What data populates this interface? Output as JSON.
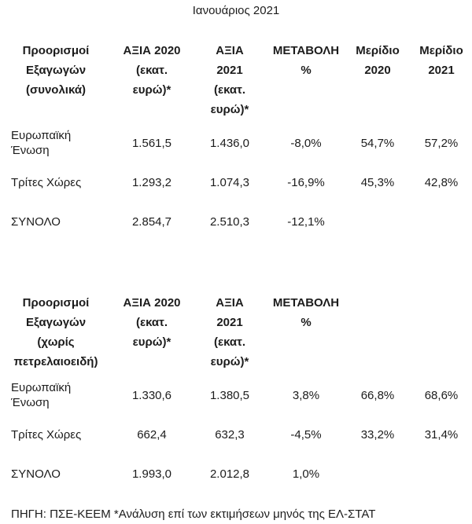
{
  "title": "Ιανουάριος 2021",
  "source_note": "ΠΗΓΗ: ΠΣΕ-ΚΕΕΜ *Ανάλυση επί των εκτιμήσεων μηνός της ΕΛ-ΣΤΑΤ",
  "tables": [
    {
      "headers": [
        "Προορισμοί\nΕξαγωγών\n(συνολικά)",
        "ΑΞΙΑ 2020\n(εκατ.\nευρώ)*",
        "ΑΞΙΑ\n2021\n(εκατ.\nευρώ)*",
        "ΜΕΤΑΒΟΛΗ\n%",
        "Μερίδιο\n2020",
        "Μερίδιο\n2021"
      ],
      "rows": [
        [
          "Ευρωπαϊκή Ένωση",
          "1.561,5",
          "1.436,0",
          "-8,0%",
          "54,7%",
          "57,2%"
        ],
        [
          "Τρίτες Χώρες",
          "1.293,2",
          "1.074,3",
          "-16,9%",
          "45,3%",
          "42,8%"
        ],
        [
          "ΣΥΝΟΛΟ",
          "2.854,7",
          "2.510,3",
          "-12,1%",
          "",
          ""
        ]
      ]
    },
    {
      "headers": [
        "Προορισμοί\nΕξαγωγών\n(χωρίς\nπετρελαιοειδή)",
        "ΑΞΙΑ 2020\n(εκατ.\nευρώ)*",
        "ΑΞΙΑ\n2021\n(εκατ.\nευρώ)*",
        "ΜΕΤΑΒΟΛΗ\n%",
        "",
        ""
      ],
      "rows": [
        [
          "Ευρωπαϊκή Ένωση",
          "1.330,6",
          "1.380,5",
          "3,8%",
          "66,8%",
          "68,6%"
        ],
        [
          "Τρίτες Χώρες",
          "662,4",
          "632,3",
          "-4,5%",
          "33,2%",
          "31,4%"
        ],
        [
          "ΣΥΝΟΛΟ",
          "1.993,0",
          "2.012,8",
          "1,0%",
          "",
          ""
        ]
      ]
    }
  ],
  "chart_data": [
    {
      "type": "table",
      "title": "Προορισμοί Εξαγωγών (συνολικά) — Ιανουάριος 2021",
      "columns": [
        "Προορισμοί Εξαγωγών (συνολικά)",
        "ΑΞΙΑ 2020 (εκατ. ευρώ)*",
        "ΑΞΙΑ 2021 (εκατ. ευρώ)*",
        "ΜΕΤΑΒΟΛΗ %",
        "Μερίδιο 2020",
        "Μερίδιο 2021"
      ],
      "rows": [
        [
          "Ευρωπαϊκή Ένωση",
          1561.5,
          1436.0,
          -8.0,
          54.7,
          57.2
        ],
        [
          "Τρίτες Χώρες",
          1293.2,
          1074.3,
          -16.9,
          45.3,
          42.8
        ],
        [
          "ΣΥΝΟΛΟ",
          2854.7,
          2510.3,
          -12.1,
          null,
          null
        ]
      ]
    },
    {
      "type": "table",
      "title": "Προορισμοί Εξαγωγών (χωρίς πετρελαιοειδή) — Ιανουάριος 2021",
      "columns": [
        "Προορισμοί Εξαγωγών (χωρίς πετρελαιοειδή)",
        "ΑΞΙΑ 2020 (εκατ. ευρώ)*",
        "ΑΞΙΑ 2021 (εκατ. ευρώ)*",
        "ΜΕΤΑΒΟΛΗ %",
        "Μερίδιο 2020",
        "Μερίδιο 2021"
      ],
      "rows": [
        [
          "Ευρωπαϊκή Ένωση",
          1330.6,
          1380.5,
          3.8,
          66.8,
          68.6
        ],
        [
          "Τρίτες Χώρες",
          662.4,
          632.3,
          -4.5,
          33.2,
          31.4
        ],
        [
          "ΣΥΝΟΛΟ",
          1993.0,
          2012.8,
          1.0,
          null,
          null
        ]
      ]
    }
  ]
}
